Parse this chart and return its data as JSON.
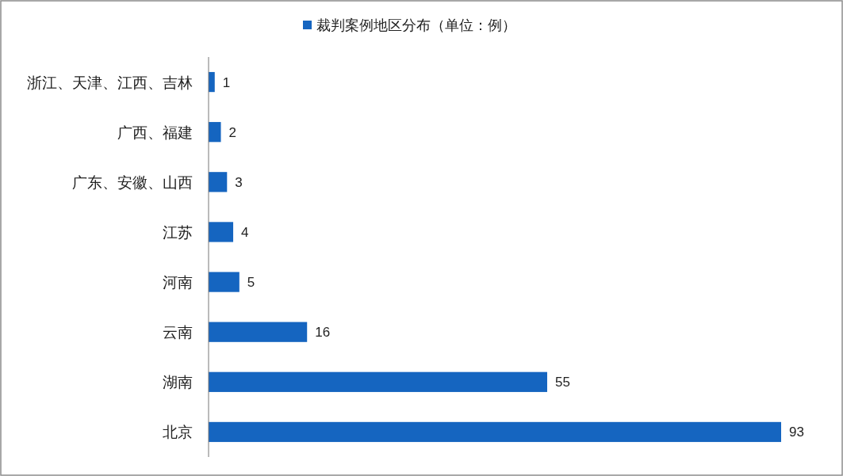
{
  "chart_data": {
    "type": "bar",
    "orientation": "horizontal",
    "categories": [
      "浙江、天津、江西、吉林",
      "广西、福建",
      "广东、安徽、山西",
      "江苏",
      "河南",
      "云南",
      "湖南",
      "北京"
    ],
    "series": [
      {
        "name": "裁判案例地区分布（单位：例）",
        "color": "#1565c0",
        "values": [
          1,
          2,
          3,
          4,
          5,
          16,
          55,
          93
        ]
      }
    ],
    "data_labels": true,
    "legend": "top"
  }
}
